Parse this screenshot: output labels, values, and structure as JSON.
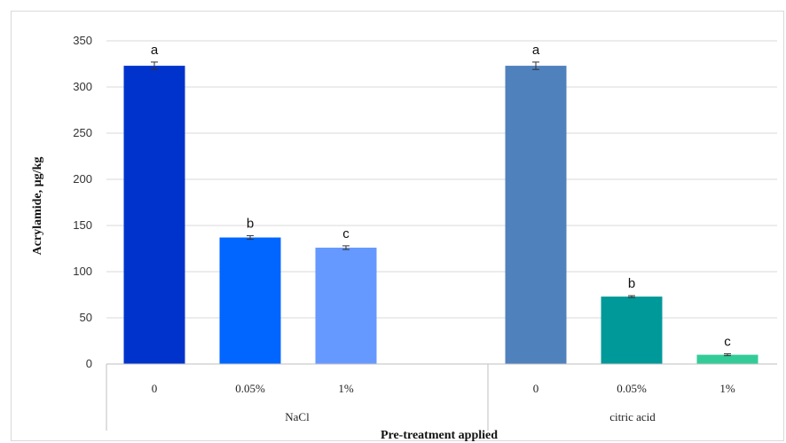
{
  "chart_data": {
    "type": "bar",
    "ylabel": "Acrylamide, µg/kg",
    "xlabel": "Pre-treatment applied",
    "ylim": [
      0,
      350
    ],
    "yticks": [
      0,
      50,
      100,
      150,
      200,
      250,
      300,
      350
    ],
    "grid": true,
    "groups": [
      {
        "name": "NaCl",
        "categories": [
          "0",
          "0.05%",
          "1%"
        ],
        "values": [
          323,
          137,
          126
        ],
        "errors": [
          4,
          2,
          2
        ],
        "labels": [
          "a",
          "b",
          "c"
        ],
        "colors": [
          "#0033cc",
          "#0066ff",
          "#6699ff"
        ]
      },
      {
        "name": "citric acid",
        "categories": [
          "0",
          "0.05%",
          "1%"
        ],
        "values": [
          323,
          73,
          10
        ],
        "errors": [
          4,
          1,
          1
        ],
        "labels": [
          "a",
          "b",
          "c"
        ],
        "colors": [
          "#4f81bd",
          "#009999",
          "#33cc99"
        ]
      }
    ]
  }
}
